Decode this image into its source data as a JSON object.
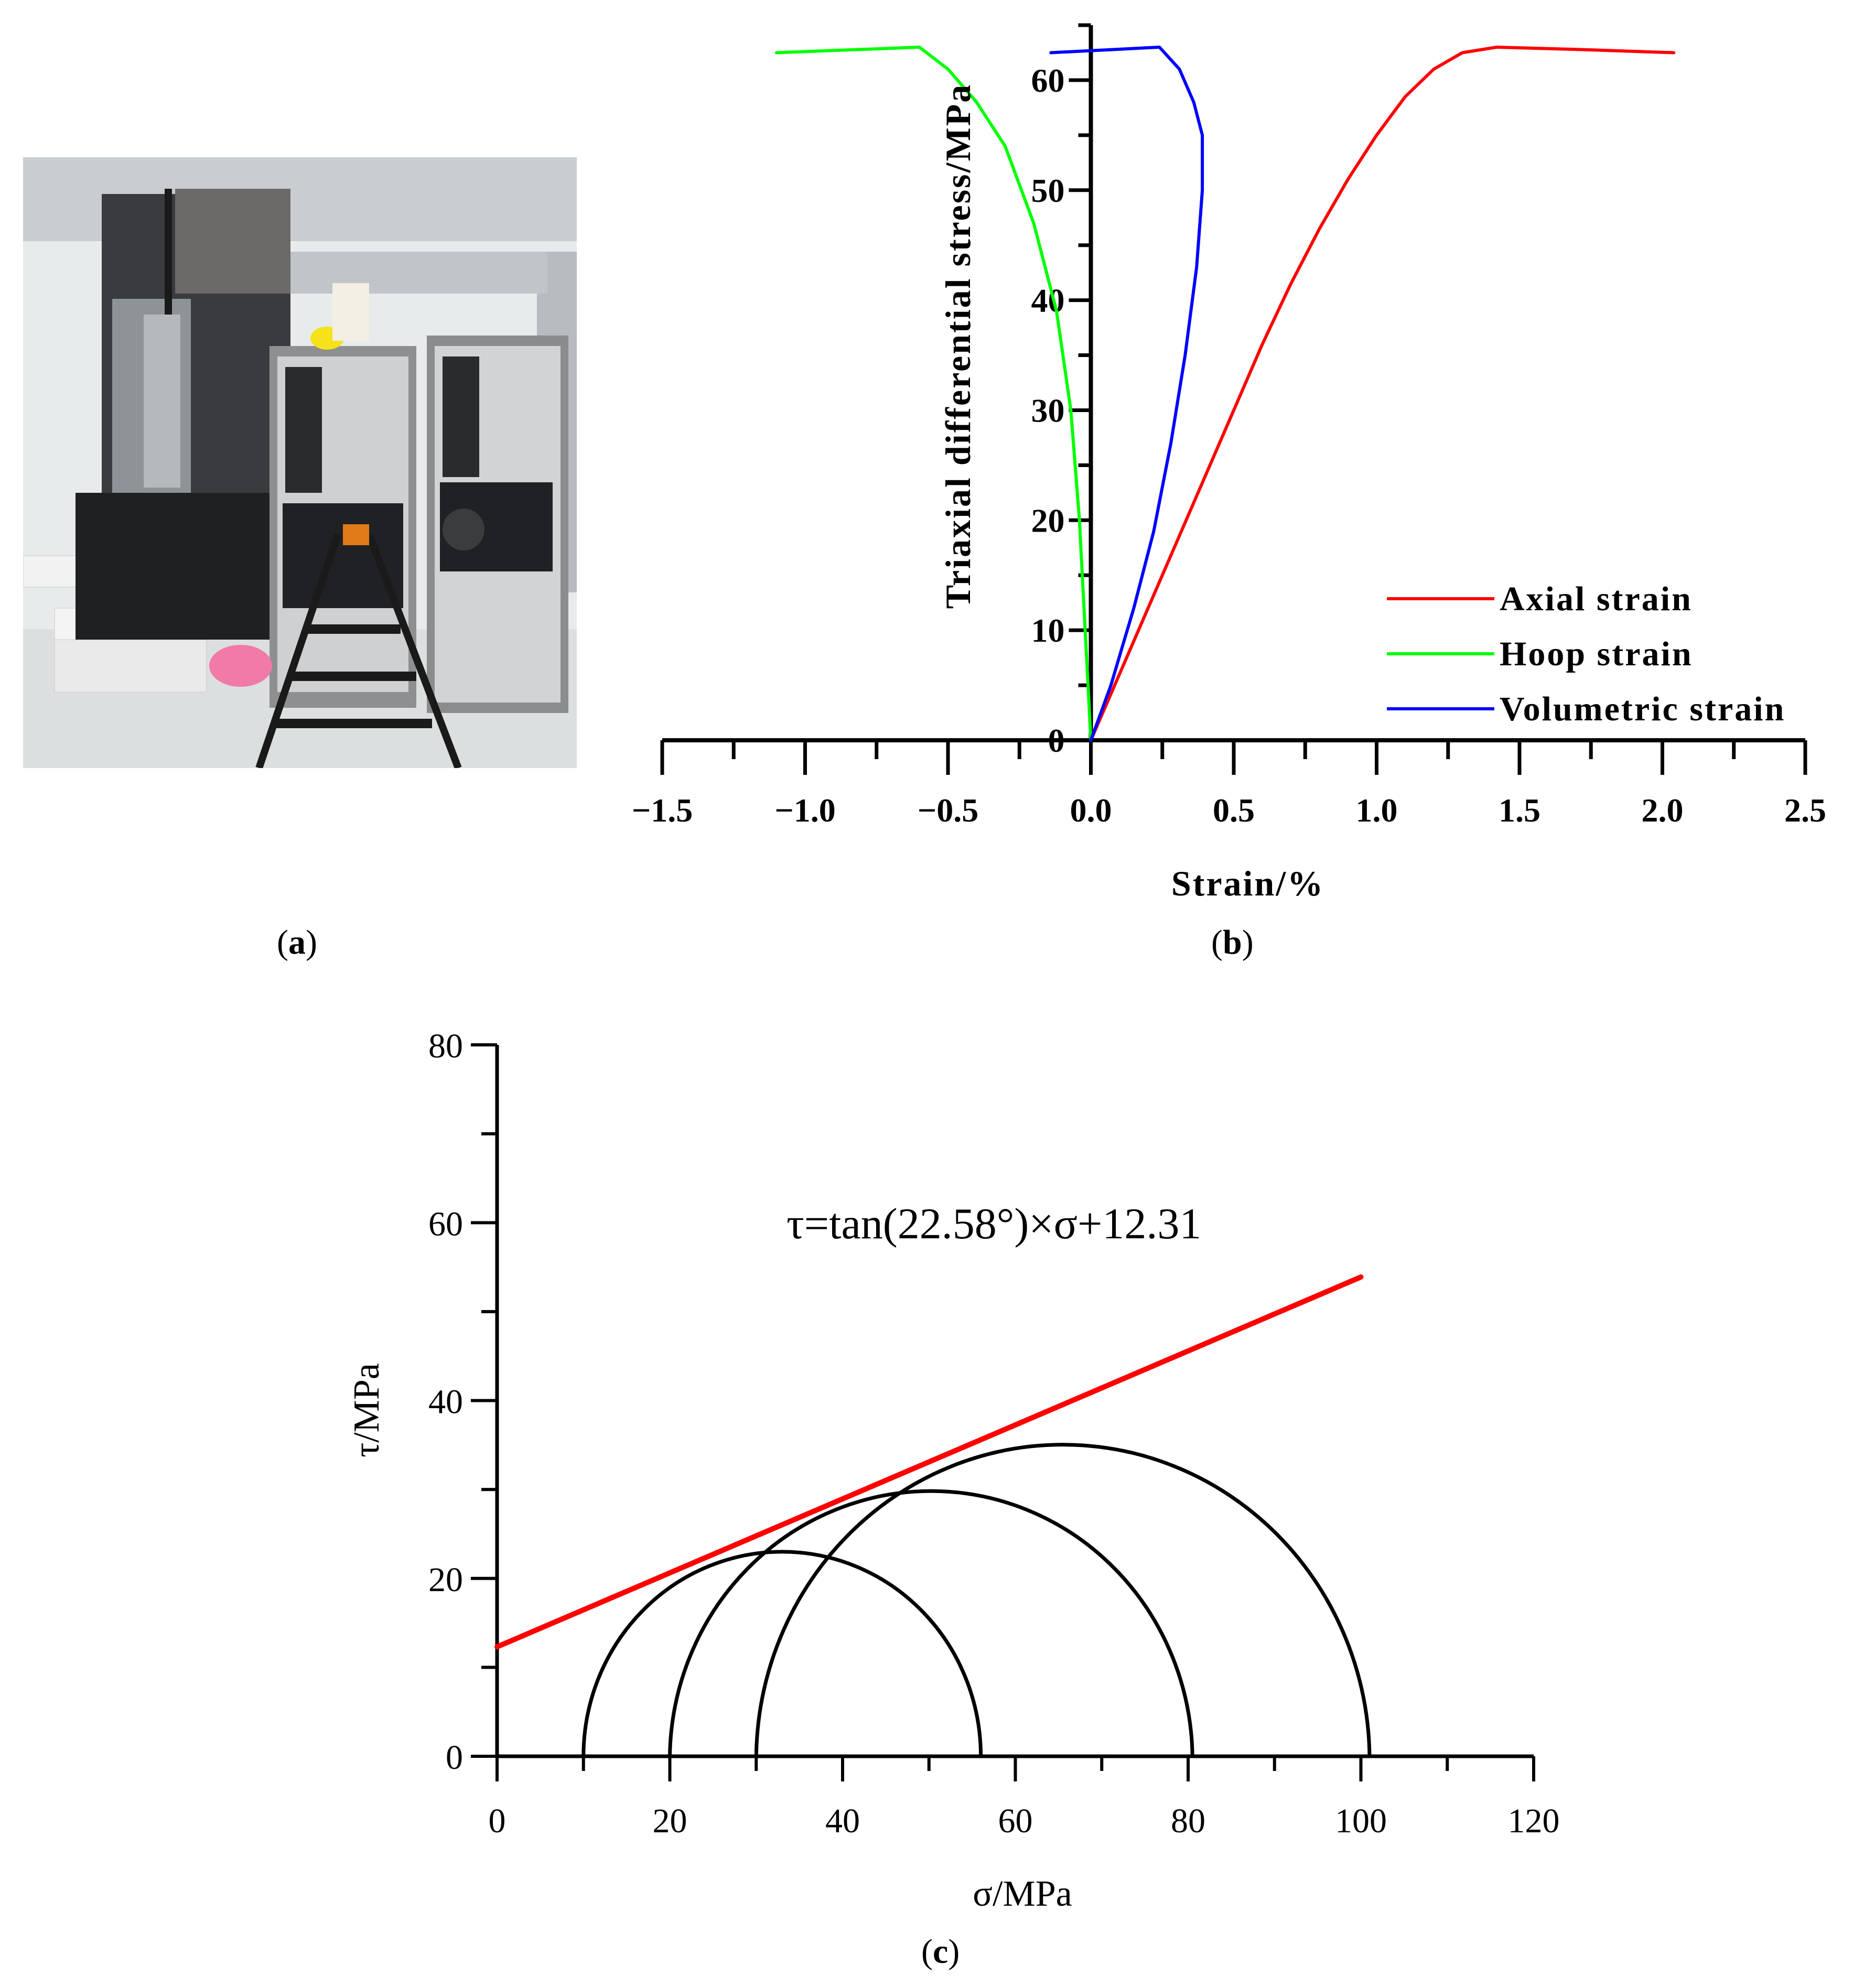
{
  "panels": {
    "a": {
      "label": "a"
    },
    "b": {
      "label": "b"
    },
    "c": {
      "label": "c"
    }
  },
  "chart_data": [
    {
      "panel": "b",
      "type": "line",
      "title": "",
      "xlabel": "Strain/%",
      "ylabel": "Triaxial differential stress/MPa",
      "xlim": [
        -1.5,
        2.5
      ],
      "ylim": [
        0,
        65
      ],
      "xticks": [
        -1.5,
        -1.0,
        -0.5,
        0.0,
        0.5,
        1.0,
        1.5,
        2.0,
        2.5
      ],
      "xtick_labels": [
        "−1.5",
        "−1.0",
        "−0.5",
        "0.0",
        "0.5",
        "1.0",
        "1.5",
        "2.0",
        "2.5"
      ],
      "yticks": [
        0,
        10,
        20,
        30,
        40,
        50,
        60
      ],
      "ytick_labels": [
        "0",
        "10",
        "20",
        "30",
        "40",
        "50",
        "60"
      ],
      "grid": false,
      "legend_position": "bottom-right",
      "series": [
        {
          "name": "Axial strain",
          "color": "#ff0000",
          "x": [
            0.0,
            0.1,
            0.2,
            0.3,
            0.4,
            0.5,
            0.6,
            0.7,
            0.8,
            0.9,
            1.0,
            1.1,
            1.2,
            1.3,
            1.42,
            1.7,
            2.04
          ],
          "y": [
            0,
            6,
            12,
            18,
            24,
            30,
            36,
            41.5,
            46.5,
            51,
            55,
            58.5,
            61,
            62.5,
            63,
            62.8,
            62.5
          ]
        },
        {
          "name": "Hoop strain",
          "color": "#00ff00",
          "x": [
            -1.1,
            -0.6,
            -0.5,
            -0.4,
            -0.3,
            -0.2,
            -0.12,
            -0.07,
            -0.04,
            -0.02,
            -0.01,
            0.0
          ],
          "y": [
            62.5,
            63,
            61,
            58,
            54,
            47,
            39,
            30,
            20,
            10,
            5,
            0
          ]
        },
        {
          "name": "Volumetric strain",
          "color": "#0000ff",
          "x": [
            -0.14,
            0.24,
            0.31,
            0.36,
            0.39,
            0.39,
            0.37,
            0.33,
            0.28,
            0.22,
            0.15,
            0.07,
            0.0
          ],
          "y": [
            62.5,
            63,
            61,
            58,
            55,
            50,
            43,
            35,
            27,
            19,
            12,
            5,
            0
          ]
        }
      ]
    },
    {
      "panel": "c",
      "type": "line",
      "title": "",
      "equation": "τ=tan(22.58°)×σ+12.31",
      "xlabel": "σ/MPa",
      "ylabel": "τ/MPa",
      "xlim": [
        0,
        120
      ],
      "ylim": [
        0,
        80
      ],
      "xticks": [
        0,
        20,
        40,
        60,
        80,
        100,
        120
      ],
      "yticks": [
        0,
        20,
        40,
        60,
        80
      ],
      "grid": false,
      "envelope": {
        "name": "Mohr–Coulomb envelope",
        "color": "#ff0000",
        "friction_angle_deg": 22.58,
        "cohesion": 12.31,
        "x_range": [
          0,
          100
        ]
      },
      "mohr_circles": [
        {
          "sigma3": 10,
          "sigma1": 56
        },
        {
          "sigma3": 20,
          "sigma1": 80.5
        },
        {
          "sigma3": 30,
          "sigma1": 101
        }
      ]
    }
  ]
}
